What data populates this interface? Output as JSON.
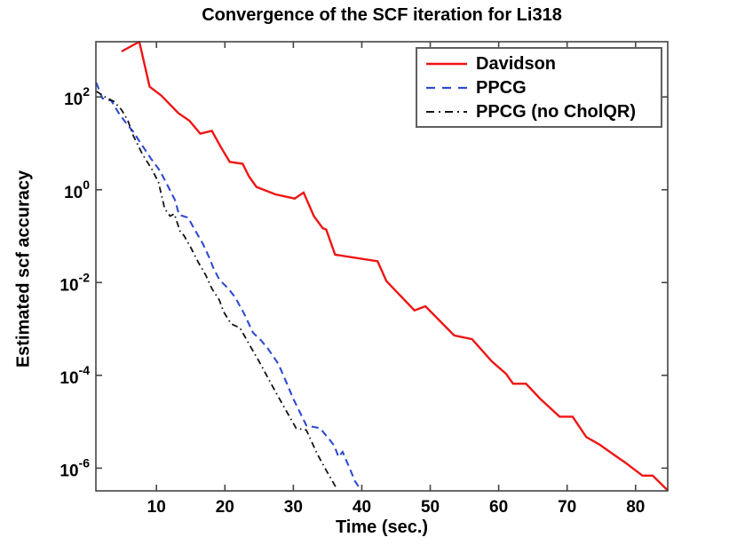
{
  "chart_data": {
    "type": "line",
    "title": "Convergence of the SCF iteration for Li318",
    "xlabel": "Time (sec.)",
    "ylabel": "Estimated scf accuracy",
    "grid": false,
    "legend_position": "top-right",
    "x_axis": {
      "min": 1.15,
      "max": 84.7,
      "ticks": [
        10,
        20,
        30,
        40,
        50,
        60,
        70,
        80
      ]
    },
    "y_axis": {
      "scale": "log10",
      "min_log10": -6.49,
      "max_log10": 3.19,
      "tick_base": "10",
      "tick_exponents": [
        2,
        0,
        -2,
        -4,
        -6
      ]
    },
    "points_format": "[time_sec, log10_of_estimated_scf_accuracy]",
    "series": [
      {
        "name": "Davidson",
        "color": "#f01414",
        "style": "solid",
        "points": [
          [
            4.9,
            2.98
          ],
          [
            7.5,
            3.19
          ],
          [
            9.0,
            2.22
          ],
          [
            10.7,
            2.03
          ],
          [
            13.2,
            1.65
          ],
          [
            14.8,
            1.49
          ],
          [
            16.4,
            1.21
          ],
          [
            18.1,
            1.27
          ],
          [
            19.4,
            0.92
          ],
          [
            20.7,
            0.6
          ],
          [
            22.6,
            0.56
          ],
          [
            23.5,
            0.29
          ],
          [
            24.6,
            0.06
          ],
          [
            27.4,
            -0.1
          ],
          [
            30.2,
            -0.19
          ],
          [
            31.5,
            -0.06
          ],
          [
            33.0,
            -0.57
          ],
          [
            34.3,
            -0.83
          ],
          [
            34.8,
            -0.86
          ],
          [
            36.1,
            -1.4
          ],
          [
            42.3,
            -1.54
          ],
          [
            43.6,
            -1.97
          ],
          [
            47.7,
            -2.6
          ],
          [
            49.3,
            -2.51
          ],
          [
            53.5,
            -3.14
          ],
          [
            56.1,
            -3.22
          ],
          [
            59.0,
            -3.7
          ],
          [
            61.1,
            -3.97
          ],
          [
            62.1,
            -4.18
          ],
          [
            64.0,
            -4.18
          ],
          [
            66.1,
            -4.51
          ],
          [
            68.9,
            -4.89
          ],
          [
            70.8,
            -4.89
          ],
          [
            72.8,
            -5.33
          ],
          [
            74.7,
            -5.49
          ],
          [
            77.5,
            -5.78
          ],
          [
            78.4,
            -5.87
          ],
          [
            81.0,
            -6.16
          ],
          [
            82.5,
            -6.16
          ],
          [
            84.7,
            -6.48
          ]
        ]
      },
      {
        "name": "PPCG",
        "color": "#2f4bd2",
        "style": "dashed",
        "points": [
          [
            1.2,
            2.31
          ],
          [
            2.1,
            1.97
          ],
          [
            3.4,
            1.92
          ],
          [
            4.5,
            1.65
          ],
          [
            5.5,
            1.45
          ],
          [
            6.6,
            1.25
          ],
          [
            7.9,
            0.96
          ],
          [
            9.2,
            0.67
          ],
          [
            10.5,
            0.41
          ],
          [
            11.6,
            0.1
          ],
          [
            12.7,
            -0.22
          ],
          [
            13.3,
            -0.54
          ],
          [
            14.6,
            -0.6
          ],
          [
            15.7,
            -0.89
          ],
          [
            16.8,
            -1.17
          ],
          [
            17.7,
            -1.46
          ],
          [
            18.3,
            -1.68
          ],
          [
            19.2,
            -1.94
          ],
          [
            20.5,
            -2.13
          ],
          [
            21.5,
            -2.32
          ],
          [
            22.8,
            -2.67
          ],
          [
            24.1,
            -3.08
          ],
          [
            25.3,
            -3.25
          ],
          [
            26.3,
            -3.43
          ],
          [
            27.8,
            -3.75
          ],
          [
            29.0,
            -4.16
          ],
          [
            30.0,
            -4.51
          ],
          [
            31.9,
            -5.08
          ],
          [
            33.9,
            -5.14
          ],
          [
            35.2,
            -5.37
          ],
          [
            36.0,
            -5.52
          ],
          [
            36.6,
            -5.76
          ],
          [
            37.2,
            -5.65
          ],
          [
            38.3,
            -6.03
          ],
          [
            39.0,
            -6.28
          ],
          [
            39.7,
            -6.43
          ]
        ]
      },
      {
        "name": "PPCG (no CholQR)",
        "color": "#141414",
        "style": "dash-dot",
        "points": [
          [
            1.2,
            2.12
          ],
          [
            2.5,
            2.0
          ],
          [
            3.8,
            1.9
          ],
          [
            4.9,
            1.72
          ],
          [
            5.8,
            1.5
          ],
          [
            6.6,
            1.17
          ],
          [
            8.0,
            0.75
          ],
          [
            9.3,
            0.45
          ],
          [
            10.3,
            0.16
          ],
          [
            11.2,
            -0.41
          ],
          [
            12.0,
            -0.57
          ],
          [
            12.6,
            -0.52
          ],
          [
            13.5,
            -0.92
          ],
          [
            14.0,
            -0.98
          ],
          [
            15.1,
            -1.27
          ],
          [
            16.1,
            -1.56
          ],
          [
            17.2,
            -1.84
          ],
          [
            18.1,
            -2.13
          ],
          [
            19.2,
            -2.38
          ],
          [
            19.8,
            -2.63
          ],
          [
            20.9,
            -2.89
          ],
          [
            22.2,
            -2.98
          ],
          [
            23.5,
            -3.32
          ],
          [
            25.0,
            -3.7
          ],
          [
            27.0,
            -4.25
          ],
          [
            28.7,
            -4.7
          ],
          [
            30.4,
            -5.14
          ],
          [
            31.9,
            -5.18
          ],
          [
            33.5,
            -5.7
          ],
          [
            35.0,
            -6.1
          ],
          [
            36.2,
            -6.41
          ]
        ]
      }
    ]
  }
}
